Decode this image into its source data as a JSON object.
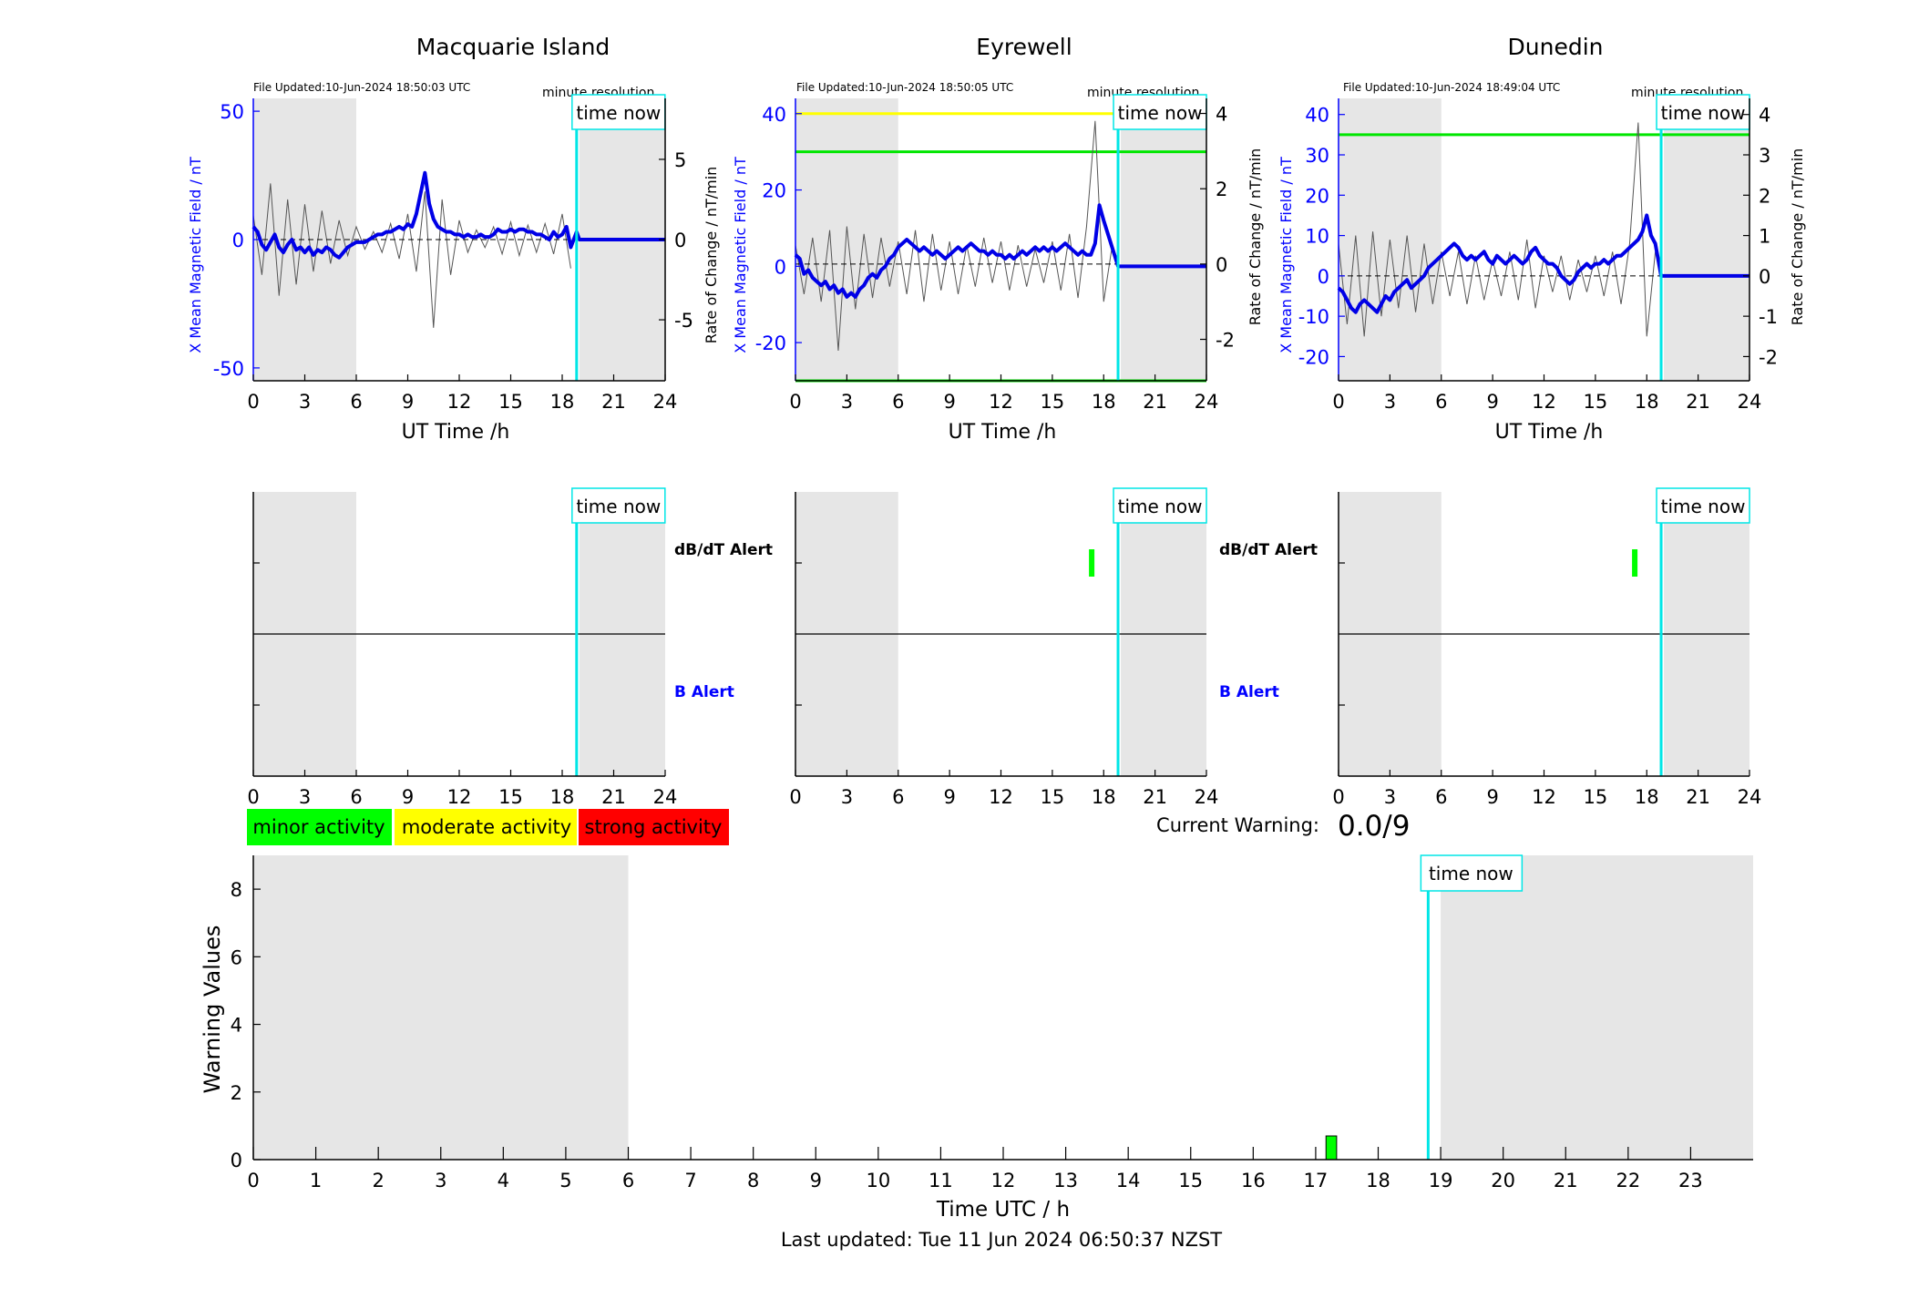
{
  "figure": {
    "footer": "Last updated: Tue 11 Jun 2024 06:50:37 NZST",
    "legend": [
      {
        "label": "minor activity",
        "color": "#00ff00"
      },
      {
        "label": "moderate activity",
        "color": "#ffff00"
      },
      {
        "label": "strong activity",
        "color": "#ff0000"
      }
    ],
    "current_warning_label": "Current Warning:",
    "current_warning_value": "0.0/9",
    "time_now_label": "time now",
    "minute_resolution_label": "minute resolution",
    "db_dt_alert_label": "dB/dT Alert",
    "b_alert_label": "B Alert",
    "colors": {
      "shade": "#e6e6e6",
      "mean_line": "#0000e6",
      "rate_line": "#555555",
      "time_now": "#00e6e6",
      "threshold_green": "#00e600",
      "threshold_yellow": "#ffff00",
      "axis_left": "#0000ff"
    }
  },
  "chart_data": [
    {
      "type": "line",
      "title": "Macquarie Island",
      "file_updated": "File Updated:10-Jun-2024 18:50:03 UTC",
      "xlabel": "UT Time /h",
      "ylabel_left": "X Mean Magnetic Field / nT",
      "ylabel_right": "Rate of Change / nT/min",
      "xlim": [
        0,
        24
      ],
      "xticks": [
        0,
        3,
        6,
        9,
        12,
        15,
        18,
        21,
        24
      ],
      "ylim_left": [
        -55,
        55
      ],
      "yticks_left": [
        -50,
        0,
        50
      ],
      "ylim_right": [
        -8.8,
        8.8
      ],
      "yticks_right": [
        -5,
        0,
        5
      ],
      "shaded_x": [
        [
          0,
          6
        ],
        [
          19,
          24
        ]
      ],
      "time_now": 18.84,
      "thresholds_left": [],
      "series": [
        {
          "name": "X Mean Magnetic Field",
          "axis": "left",
          "x": [
            0,
            0.25,
            0.5,
            0.75,
            1,
            1.25,
            1.5,
            1.75,
            2,
            2.25,
            2.5,
            2.75,
            3,
            3.25,
            3.5,
            3.75,
            4,
            4.25,
            4.5,
            4.75,
            5,
            5.25,
            5.5,
            5.75,
            6,
            6.25,
            6.5,
            6.75,
            7,
            7.25,
            7.5,
            7.75,
            8,
            8.25,
            8.5,
            8.75,
            9,
            9.25,
            9.5,
            9.75,
            10,
            10.25,
            10.5,
            10.75,
            11,
            11.25,
            11.5,
            11.75,
            12,
            12.25,
            12.5,
            12.75,
            13,
            13.25,
            13.5,
            13.75,
            14,
            14.25,
            14.5,
            14.75,
            15,
            15.25,
            15.5,
            15.75,
            16,
            16.25,
            16.5,
            16.75,
            17,
            17.25,
            17.5,
            17.75,
            18,
            18.25,
            18.5,
            18.84,
            19,
            24
          ],
          "values": [
            5,
            3,
            -2,
            -4,
            -1,
            2,
            -3,
            -5,
            -2,
            0,
            -4,
            -3,
            -5,
            -3,
            -6,
            -4,
            -5,
            -3,
            -4,
            -6,
            -7,
            -5,
            -3,
            -2,
            -1,
            -1,
            -1,
            0,
            1,
            2,
            2,
            3,
            3,
            4,
            5,
            4,
            6,
            5,
            10,
            18,
            26,
            14,
            8,
            5,
            4,
            3,
            3,
            2,
            2,
            1,
            2,
            1,
            1,
            2,
            1,
            1,
            2,
            4,
            3,
            3,
            4,
            3,
            4,
            4,
            3,
            3,
            2,
            2,
            1,
            0,
            3,
            1,
            2,
            5,
            -3,
            3,
            0,
            0
          ]
        },
        {
          "name": "Rate of Change",
          "axis": "right",
          "x": [
            0,
            0.5,
            1,
            1.5,
            2,
            2.5,
            3,
            3.5,
            4,
            4.5,
            5,
            5.5,
            6,
            6.5,
            7,
            7.5,
            8,
            8.5,
            9,
            9.5,
            10,
            10.5,
            11,
            11.5,
            12,
            12.5,
            13,
            13.5,
            14,
            14.5,
            15,
            15.5,
            16,
            16.5,
            17,
            17.5,
            18,
            18.5
          ],
          "values": [
            1.5,
            -2.2,
            3.5,
            -3.5,
            2.5,
            -2.8,
            2.2,
            -2.0,
            1.8,
            -1.5,
            1.2,
            -1.0,
            0.8,
            -0.6,
            0.5,
            -0.8,
            1.0,
            -1.2,
            1.6,
            -2.0,
            3.0,
            -5.5,
            2.5,
            -2.2,
            1.2,
            -0.8,
            0.6,
            -0.5,
            0.8,
            -0.9,
            1.1,
            -1.0,
            0.9,
            -0.8,
            1.0,
            -0.9,
            1.6,
            -1.8
          ]
        }
      ]
    },
    {
      "type": "line",
      "title": "Eyrewell",
      "file_updated": "File Updated:10-Jun-2024 18:50:05 UTC",
      "xlabel": "UT Time /h",
      "ylabel_left": "X Mean Magnetic Field / nT",
      "ylabel_right": "Rate of Change / nT/min",
      "xlim": [
        0,
        24
      ],
      "xticks": [
        0,
        3,
        6,
        9,
        12,
        15,
        18,
        21,
        24
      ],
      "ylim_left": [
        -30,
        44
      ],
      "yticks_left": [
        -20,
        0,
        20,
        40
      ],
      "ylim_right": [
        -3.1,
        4.4
      ],
      "yticks_right": [
        -2,
        0,
        2,
        4
      ],
      "shaded_x": [
        [
          0,
          6
        ],
        [
          19,
          24
        ]
      ],
      "time_now": 18.84,
      "thresholds_left": [
        {
          "value": 40,
          "color": "#ffff00"
        },
        {
          "value": 30,
          "color": "#00e600"
        },
        {
          "value": -30,
          "color": "#00e600"
        }
      ],
      "series": [
        {
          "name": "X Mean Magnetic Field",
          "axis": "left",
          "x": [
            0,
            0.25,
            0.5,
            0.75,
            1,
            1.25,
            1.5,
            1.75,
            2,
            2.25,
            2.5,
            2.75,
            3,
            3.25,
            3.5,
            3.75,
            4,
            4.25,
            4.5,
            4.75,
            5,
            5.25,
            5.5,
            5.75,
            6,
            6.25,
            6.5,
            6.75,
            7,
            7.25,
            7.5,
            7.75,
            8,
            8.25,
            8.5,
            8.75,
            9,
            9.25,
            9.5,
            9.75,
            10,
            10.25,
            10.5,
            10.75,
            11,
            11.25,
            11.5,
            11.75,
            12,
            12.25,
            12.5,
            12.75,
            13,
            13.25,
            13.5,
            13.75,
            14,
            14.25,
            14.5,
            14.75,
            15,
            15.25,
            15.5,
            15.75,
            16,
            16.25,
            16.5,
            16.75,
            17,
            17.25,
            17.5,
            17.75,
            18,
            18.84,
            19,
            24
          ],
          "values": [
            3,
            2,
            -2,
            -1,
            -3,
            -4,
            -5,
            -4,
            -6,
            -5,
            -7,
            -6,
            -8,
            -7,
            -8,
            -6,
            -5,
            -3,
            -2,
            -3,
            -1,
            0,
            2,
            3,
            5,
            6,
            7,
            6,
            5,
            4,
            5,
            4,
            3,
            4,
            3,
            2,
            3,
            4,
            5,
            4,
            5,
            6,
            5,
            4,
            4,
            3,
            4,
            3,
            3,
            2,
            3,
            2,
            3,
            4,
            3,
            4,
            5,
            4,
            5,
            4,
            5,
            4,
            5,
            6,
            5,
            4,
            3,
            4,
            3,
            3,
            6,
            16,
            12,
            0,
            0,
            0
          ]
        },
        {
          "name": "Rate of Change",
          "axis": "right",
          "x": [
            0,
            0.5,
            1,
            1.5,
            2,
            2.5,
            3,
            3.5,
            4,
            4.5,
            5,
            5.5,
            6,
            6.5,
            7,
            7.5,
            8,
            8.5,
            9,
            9.5,
            10,
            10.5,
            11,
            11.5,
            12,
            12.5,
            13,
            13.5,
            14,
            14.5,
            15,
            15.5,
            16,
            16.5,
            17,
            17.5,
            18,
            18.5
          ],
          "values": [
            0.5,
            -0.8,
            0.7,
            -1.0,
            0.9,
            -2.3,
            1.0,
            -1.2,
            0.8,
            -0.9,
            0.7,
            -0.6,
            0.6,
            -0.8,
            0.9,
            -1.0,
            0.8,
            -0.7,
            0.6,
            -0.8,
            0.5,
            -0.6,
            0.7,
            -0.5,
            0.6,
            -0.7,
            0.5,
            -0.6,
            0.4,
            -0.5,
            0.6,
            -0.7,
            0.8,
            -0.9,
            1.0,
            3.8,
            -1.0,
            0.5
          ]
        }
      ]
    },
    {
      "type": "line",
      "title": "Dunedin",
      "file_updated": "File Updated:10-Jun-2024 18:49:04 UTC",
      "xlabel": "UT Time /h",
      "ylabel_left": "X Mean Magnetic Field / nT",
      "ylabel_right": "Rate of Change / nT/min",
      "xlim": [
        0,
        24
      ],
      "xticks": [
        0,
        3,
        6,
        9,
        12,
        15,
        18,
        21,
        24
      ],
      "ylim_left": [
        -26,
        44
      ],
      "yticks_left": [
        -20,
        -10,
        0,
        10,
        20,
        30,
        40
      ],
      "ylim_right": [
        -2.6,
        4.4
      ],
      "yticks_right": [
        -2,
        -1,
        0,
        1,
        2,
        3,
        4
      ],
      "shaded_x": [
        [
          0,
          6
        ],
        [
          19,
          24
        ]
      ],
      "time_now": 18.84,
      "thresholds_left": [
        {
          "value": 35,
          "color": "#00e600"
        }
      ],
      "series": [
        {
          "name": "X Mean Magnetic Field",
          "axis": "left",
          "x": [
            0,
            0.25,
            0.5,
            0.75,
            1,
            1.25,
            1.5,
            1.75,
            2,
            2.25,
            2.5,
            2.75,
            3,
            3.25,
            3.5,
            3.75,
            4,
            4.25,
            4.5,
            4.75,
            5,
            5.25,
            5.5,
            5.75,
            6,
            6.25,
            6.5,
            6.75,
            7,
            7.25,
            7.5,
            7.75,
            8,
            8.25,
            8.5,
            8.75,
            9,
            9.25,
            9.5,
            9.75,
            10,
            10.25,
            10.5,
            10.75,
            11,
            11.25,
            11.5,
            11.75,
            12,
            12.25,
            12.5,
            12.75,
            13,
            13.25,
            13.5,
            13.75,
            14,
            14.25,
            14.5,
            14.75,
            15,
            15.25,
            15.5,
            15.75,
            16,
            16.25,
            16.5,
            16.75,
            17,
            17.25,
            17.5,
            17.75,
            18,
            18.25,
            18.5,
            18.84,
            19,
            24
          ],
          "values": [
            -3,
            -4,
            -6,
            -8,
            -9,
            -7,
            -6,
            -7,
            -8,
            -9,
            -7,
            -5,
            -6,
            -4,
            -3,
            -2,
            -1,
            -3,
            -2,
            -1,
            0,
            2,
            3,
            4,
            5,
            6,
            7,
            8,
            7,
            5,
            4,
            5,
            4,
            5,
            6,
            4,
            3,
            5,
            4,
            3,
            4,
            5,
            4,
            3,
            4,
            6,
            7,
            5,
            4,
            3,
            3,
            2,
            0,
            -1,
            -2,
            -1,
            1,
            2,
            3,
            2,
            3,
            3,
            4,
            3,
            4,
            5,
            5,
            6,
            7,
            8,
            9,
            11,
            15,
            10,
            8,
            0,
            0,
            0
          ]
        },
        {
          "name": "Rate of Change",
          "axis": "right",
          "x": [
            0,
            0.5,
            1,
            1.5,
            2,
            2.5,
            3,
            3.5,
            4,
            4.5,
            5,
            5.5,
            6,
            6.5,
            7,
            7.5,
            8,
            8.5,
            9,
            9.5,
            10,
            10.5,
            11,
            11.5,
            12,
            12.5,
            13,
            13.5,
            14,
            14.5,
            15,
            15.5,
            16,
            16.5,
            17,
            17.5,
            18,
            18.5
          ],
          "values": [
            0.8,
            -1.2,
            1.0,
            -1.5,
            1.1,
            -1.0,
            0.9,
            -0.8,
            1.0,
            -0.9,
            0.8,
            -0.7,
            0.6,
            -0.5,
            0.6,
            -0.7,
            0.5,
            -0.6,
            0.4,
            -0.5,
            0.6,
            -0.6,
            0.9,
            -0.8,
            0.5,
            -0.4,
            0.5,
            -0.6,
            0.4,
            -0.4,
            0.5,
            -0.5,
            0.6,
            -0.7,
            0.8,
            3.8,
            -1.5,
            0.6
          ]
        }
      ]
    },
    {
      "type": "bar",
      "title": "",
      "xlabel": "UT Time /h",
      "upper_label": "dB/dT Alert",
      "lower_label": "B Alert",
      "xlim": [
        0,
        24
      ],
      "xticks": [
        0,
        3,
        6,
        9,
        12,
        15,
        18,
        21,
        24
      ],
      "shaded_x": [
        [
          0,
          6
        ],
        [
          19,
          24
        ]
      ],
      "time_now": 18.84,
      "alerts": []
    },
    {
      "type": "bar",
      "title": "",
      "xlabel": "UT Time /h",
      "upper_label": "dB/dT Alert",
      "lower_label": "B Alert",
      "xlim": [
        0,
        24
      ],
      "xticks": [
        0,
        3,
        6,
        9,
        12,
        15,
        18,
        21,
        24
      ],
      "shaded_x": [
        [
          0,
          6
        ],
        [
          19,
          24
        ]
      ],
      "time_now": 18.84,
      "alerts": [
        {
          "x": 17.3,
          "kind": "dB/dT",
          "color": "#00ff00"
        }
      ]
    },
    {
      "type": "bar",
      "title": "",
      "xlabel": "UT Time /h",
      "upper_label": "dB/dT Alert",
      "lower_label": "B Alert",
      "xlim": [
        0,
        24
      ],
      "xticks": [
        0,
        3,
        6,
        9,
        12,
        15,
        18,
        21,
        24
      ],
      "shaded_x": [
        [
          0,
          6
        ],
        [
          19,
          24
        ]
      ],
      "time_now": 18.84,
      "alerts": [
        {
          "x": 17.3,
          "kind": "dB/dT",
          "color": "#00ff00"
        }
      ]
    },
    {
      "type": "bar",
      "title": "",
      "xlabel": "Time UTC / h",
      "ylabel": "Warning Values",
      "xlim": [
        0,
        24
      ],
      "xticks": [
        0,
        1,
        2,
        3,
        4,
        5,
        6,
        7,
        8,
        9,
        10,
        11,
        12,
        13,
        14,
        15,
        16,
        17,
        18,
        19,
        20,
        21,
        22,
        23
      ],
      "ylim": [
        0,
        9
      ],
      "yticks": [
        0,
        2,
        4,
        6,
        8
      ],
      "shaded_x": [
        [
          0,
          6
        ],
        [
          19,
          24
        ]
      ],
      "time_now": 18.8,
      "bars": [
        {
          "x": 17.25,
          "width": 0.17,
          "value": 0.7,
          "color": "#00ff00"
        }
      ]
    }
  ]
}
